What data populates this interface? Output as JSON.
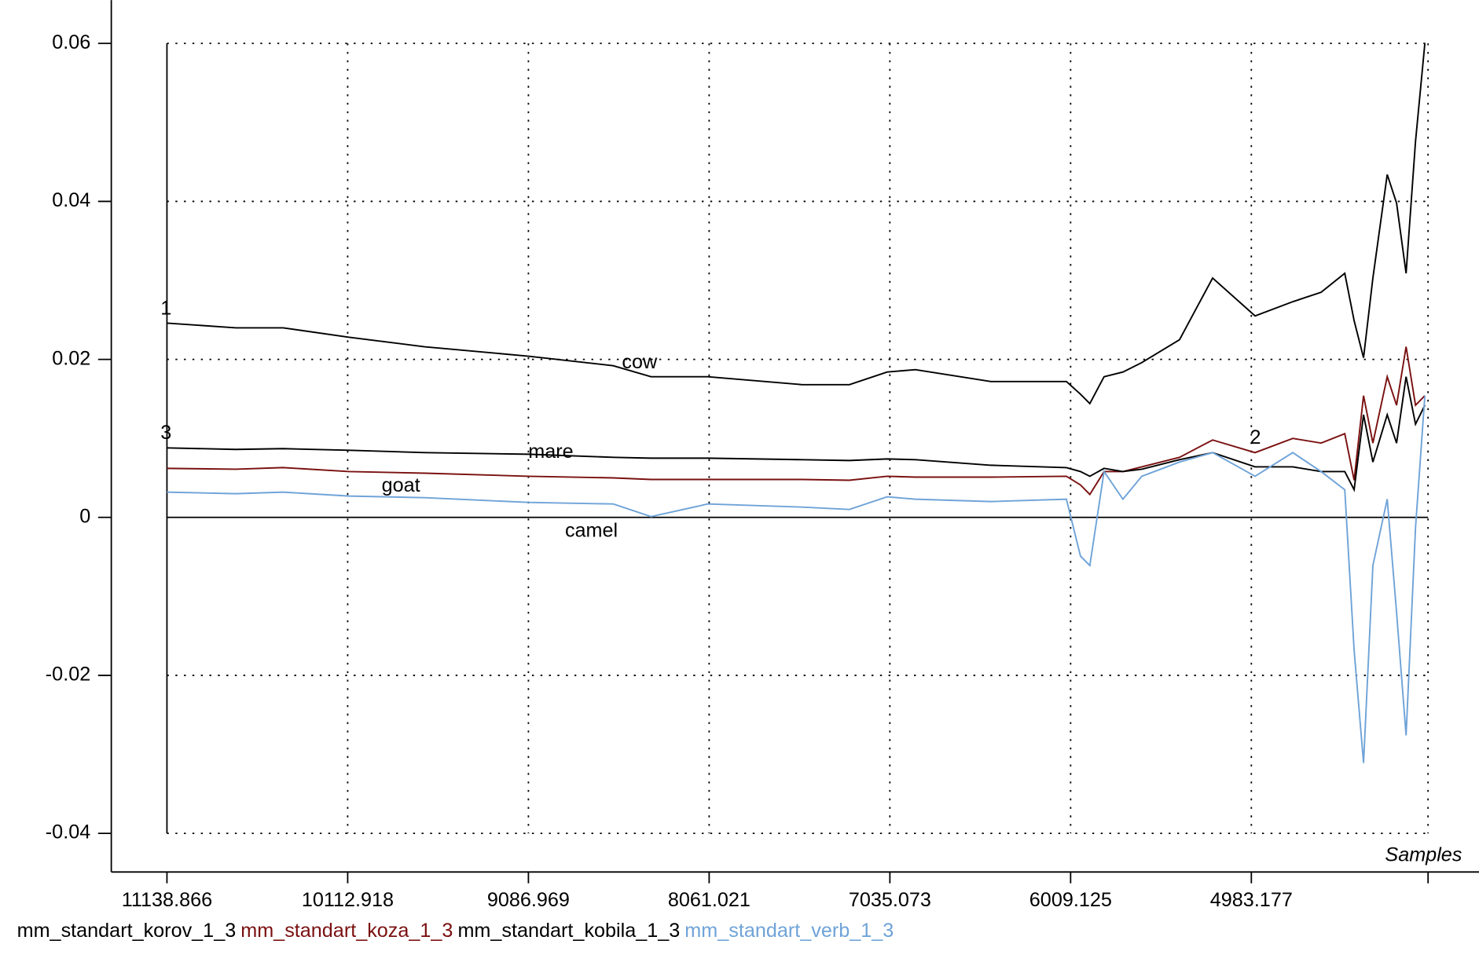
{
  "chart_data": {
    "type": "line",
    "x_label": "Samples",
    "x": [
      11139,
      10748,
      10480,
      10105,
      9676,
      9087,
      8605,
      8391,
      8069,
      7533,
      7265,
      7051,
      6890,
      6462,
      6033,
      5953,
      5900,
      5819,
      5712,
      5605,
      5391,
      5203,
      4962,
      4748,
      4587,
      4453,
      4400,
      4346,
      4293,
      4212,
      4159,
      4105,
      4051,
      3998
    ],
    "xlim": [
      11138.866,
      3980
    ],
    "xticks": [
      11138.866,
      10112.918,
      9086.969,
      8061.021,
      7035.073,
      6009.125,
      4983.177
    ],
    "ylim": [
      -0.04,
      0.06
    ],
    "yticks": [
      -0.04,
      -0.02,
      0,
      0.02,
      0.04,
      0.06
    ],
    "grid": true,
    "series": [
      {
        "name": "mm_standart_korov_1_3",
        "color": "#000000",
        "values": [
          0.0246,
          0.024,
          0.024,
          0.0228,
          0.0216,
          0.0204,
          0.0192,
          0.0178,
          0.0178,
          0.0168,
          0.0168,
          0.0184,
          0.0187,
          0.0172,
          0.0172,
          0.0156,
          0.0144,
          0.0178,
          0.0184,
          0.0196,
          0.0225,
          0.0303,
          0.0255,
          0.0273,
          0.0285,
          0.0309,
          0.0249,
          0.0202,
          0.0303,
          0.0434,
          0.0398,
          0.0309,
          0.0476,
          0.06
        ]
      },
      {
        "name": "mm_standart_koza_1_3",
        "color": "#7a1010",
        "values": [
          0.0062,
          0.0061,
          0.0063,
          0.0058,
          0.0056,
          0.0052,
          0.005,
          0.0048,
          0.0048,
          0.0048,
          0.0047,
          0.0052,
          0.0051,
          0.0051,
          0.0052,
          0.0041,
          0.0029,
          0.0058,
          0.0058,
          0.0064,
          0.0076,
          0.0098,
          0.0082,
          0.01,
          0.0094,
          0.0106,
          0.0047,
          0.0154,
          0.0094,
          0.0178,
          0.0142,
          0.0216,
          0.0142,
          0.0154
        ]
      },
      {
        "name": "mm_standart_kobila_1_3",
        "color": "#000000",
        "values": [
          0.0088,
          0.0086,
          0.0087,
          0.0085,
          0.0082,
          0.008,
          0.0076,
          0.0075,
          0.0075,
          0.0073,
          0.0072,
          0.0074,
          0.0073,
          0.0066,
          0.0063,
          0.0058,
          0.0052,
          0.0062,
          0.0058,
          0.0061,
          0.0073,
          0.0082,
          0.0064,
          0.0064,
          0.0058,
          0.0058,
          0.0035,
          0.013,
          0.007,
          0.013,
          0.0094,
          0.0178,
          0.0118,
          0.0142
        ]
      },
      {
        "name": "mm_standart_verb_1_3",
        "color": "#6fa3d8",
        "values": [
          0.0032,
          0.003,
          0.0032,
          0.0027,
          0.0025,
          0.0019,
          0.0017,
          0.0001,
          0.0017,
          0.0013,
          0.001,
          0.0026,
          0.0023,
          0.002,
          0.0023,
          -0.0049,
          -0.0061,
          0.0058,
          0.0023,
          0.0052,
          0.007,
          0.0082,
          0.0052,
          0.0082,
          0.0058,
          0.0035,
          -0.0168,
          -0.0311,
          -0.0061,
          0.0023,
          -0.012,
          -0.0276,
          -0.0013,
          0.0154
        ]
      }
    ],
    "annotations": [
      "cow",
      "mare",
      "goat",
      "camel",
      "1",
      "3",
      "2"
    ]
  }
}
